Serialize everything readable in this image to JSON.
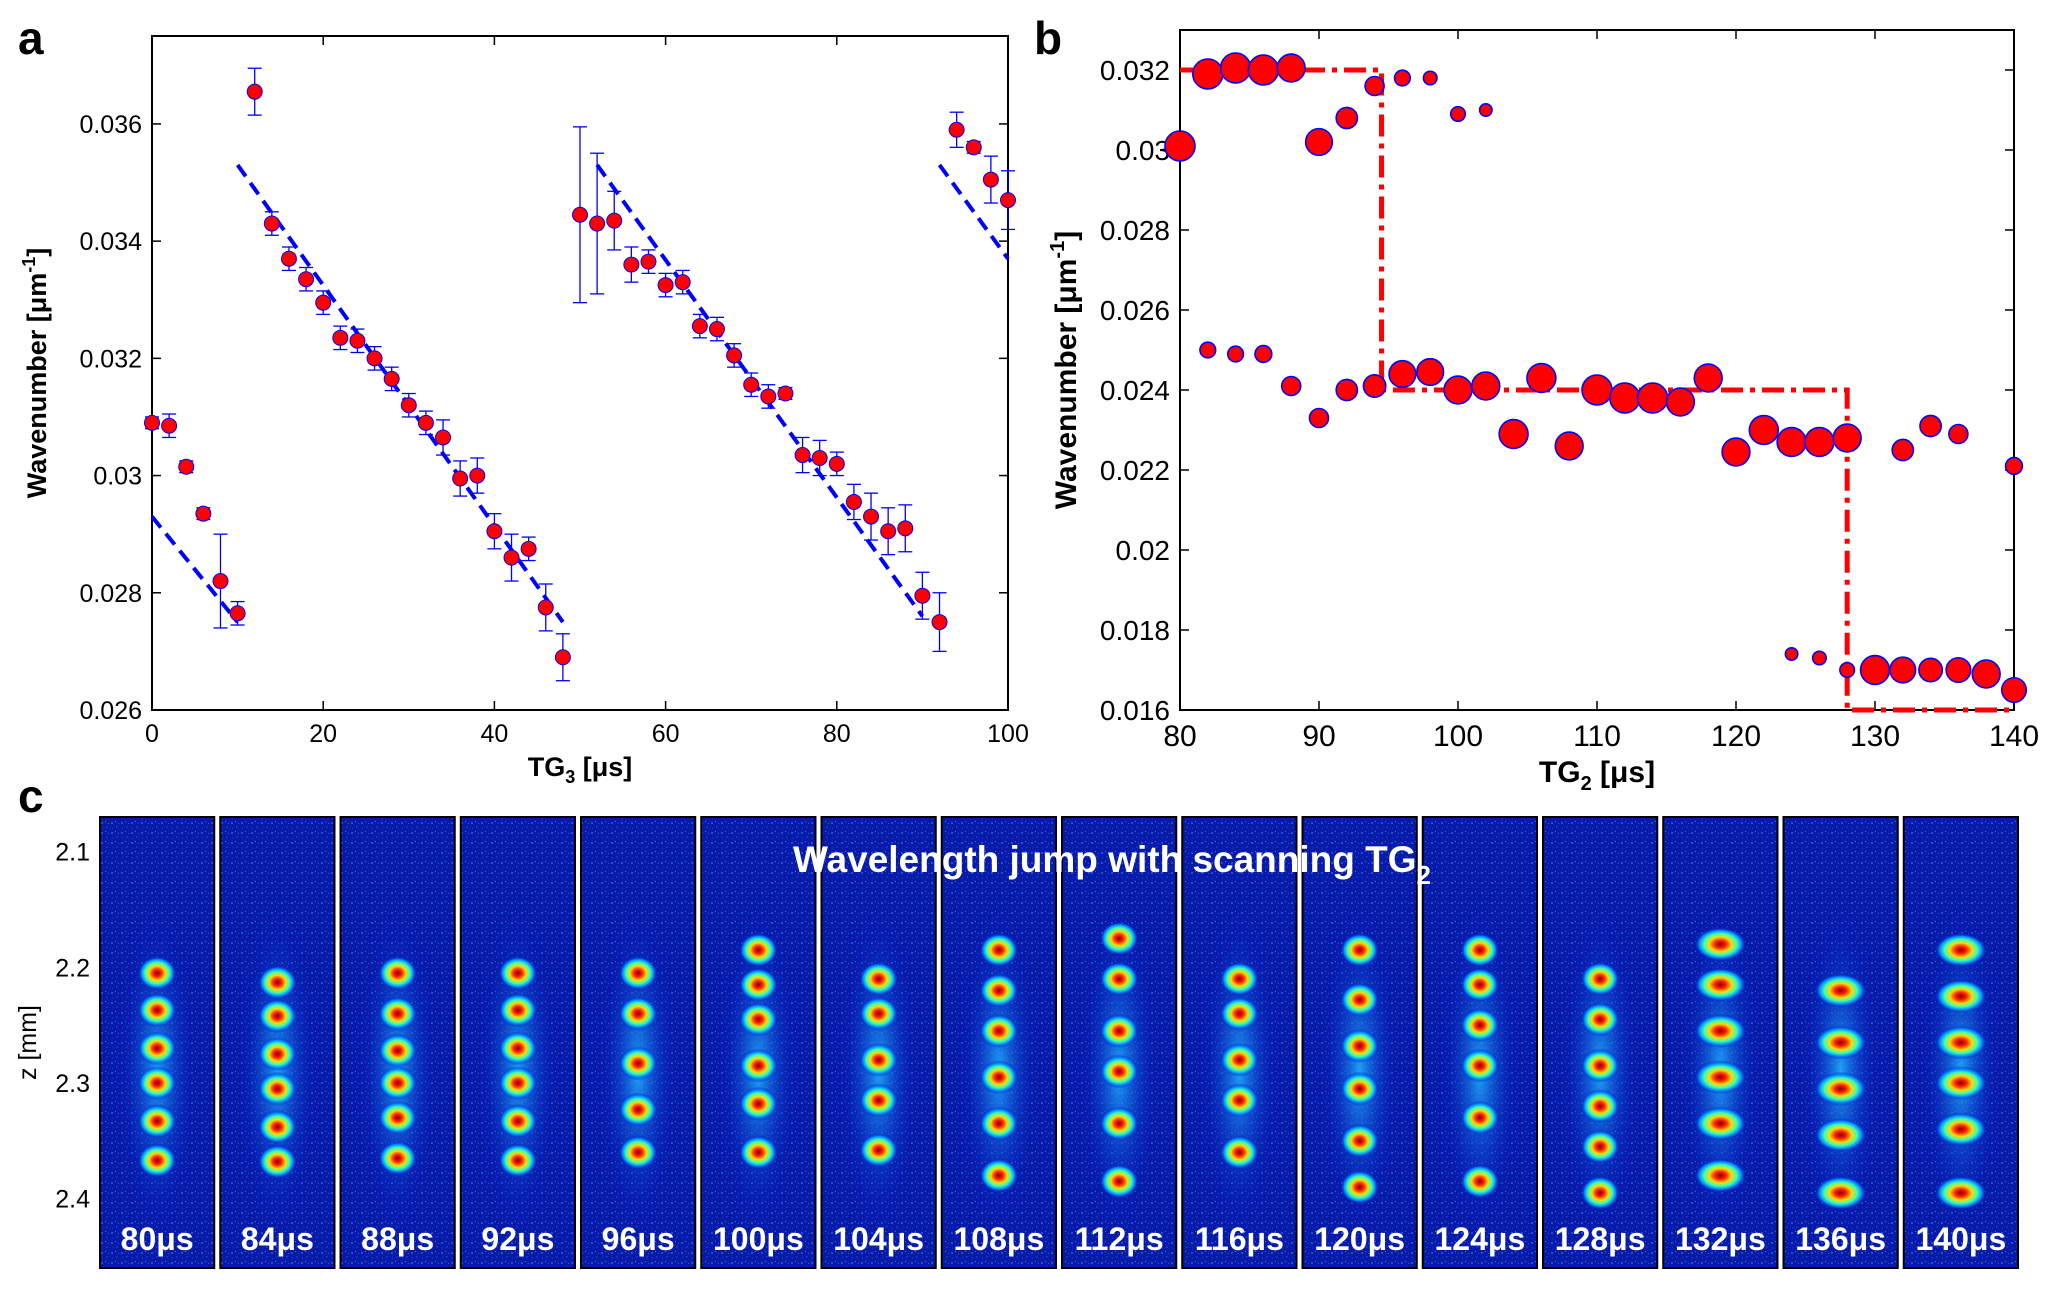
{
  "chart_data": [
    {
      "panel": "a",
      "type": "scatter",
      "xlabel_main": "TG",
      "xlabel_sub": "3",
      "xlabel_unit": " [μs]",
      "ylabel_main": "Wavenumber [μm",
      "ylabel_sup": "-1",
      "ylabel_end": "]",
      "xlim": [
        0,
        100
      ],
      "ylim": [
        0.026,
        0.0375
      ],
      "xticks": [
        0,
        20,
        40,
        60,
        80,
        100
      ],
      "xtick_labels": [
        "0",
        "20",
        "40",
        "60",
        "80",
        "100"
      ],
      "yticks": [
        0.026,
        0.028,
        0.03,
        0.032,
        0.034,
        0.036
      ],
      "ytick_labels": [
        "0.026",
        "0.028",
        "0.03",
        "0.032",
        "0.034",
        "0.036"
      ],
      "marker_color": "#ff0000",
      "marker_edge_color": "#0000ff",
      "errorbar_color": "#0000ff",
      "points": [
        {
          "x": 0,
          "y": 0.0309,
          "err": 0.0001
        },
        {
          "x": 2,
          "y": 0.03085,
          "err": 0.0002
        },
        {
          "x": 4,
          "y": 0.03015,
          "err": 0.0001
        },
        {
          "x": 6,
          "y": 0.02935,
          "err": 0.0001
        },
        {
          "x": 8,
          "y": 0.0282,
          "err": 0.0008
        },
        {
          "x": 10,
          "y": 0.02765,
          "err": 0.0002
        },
        {
          "x": 12,
          "y": 0.03655,
          "err": 0.0004
        },
        {
          "x": 14,
          "y": 0.0343,
          "err": 0.0002
        },
        {
          "x": 16,
          "y": 0.0337,
          "err": 0.0002
        },
        {
          "x": 18,
          "y": 0.03335,
          "err": 0.0002
        },
        {
          "x": 20,
          "y": 0.03295,
          "err": 0.0002
        },
        {
          "x": 22,
          "y": 0.03235,
          "err": 0.0002
        },
        {
          "x": 24,
          "y": 0.0323,
          "err": 0.0002
        },
        {
          "x": 26,
          "y": 0.032,
          "err": 0.0002
        },
        {
          "x": 28,
          "y": 0.03165,
          "err": 0.0002
        },
        {
          "x": 30,
          "y": 0.0312,
          "err": 0.0002
        },
        {
          "x": 32,
          "y": 0.0309,
          "err": 0.0002
        },
        {
          "x": 34,
          "y": 0.03065,
          "err": 0.0003
        },
        {
          "x": 36,
          "y": 0.02995,
          "err": 0.0003
        },
        {
          "x": 38,
          "y": 0.03,
          "err": 0.0003
        },
        {
          "x": 40,
          "y": 0.02905,
          "err": 0.0003
        },
        {
          "x": 42,
          "y": 0.0286,
          "err": 0.0004
        },
        {
          "x": 44,
          "y": 0.02875,
          "err": 0.0002
        },
        {
          "x": 46,
          "y": 0.02775,
          "err": 0.0004
        },
        {
          "x": 48,
          "y": 0.0269,
          "err": 0.0004
        },
        {
          "x": 50,
          "y": 0.03445,
          "err": 0.0015
        },
        {
          "x": 52,
          "y": 0.0343,
          "err": 0.0012
        },
        {
          "x": 54,
          "y": 0.03435,
          "err": 0.0005
        },
        {
          "x": 56,
          "y": 0.0336,
          "err": 0.0003
        },
        {
          "x": 58,
          "y": 0.03365,
          "err": 0.0002
        },
        {
          "x": 60,
          "y": 0.03325,
          "err": 0.0002
        },
        {
          "x": 62,
          "y": 0.0333,
          "err": 0.0002
        },
        {
          "x": 64,
          "y": 0.03255,
          "err": 0.0002
        },
        {
          "x": 66,
          "y": 0.0325,
          "err": 0.0002
        },
        {
          "x": 68,
          "y": 0.03205,
          "err": 0.0002
        },
        {
          "x": 70,
          "y": 0.03155,
          "err": 0.0002
        },
        {
          "x": 72,
          "y": 0.03135,
          "err": 0.0002
        },
        {
          "x": 74,
          "y": 0.0314,
          "err": 0.0001
        },
        {
          "x": 76,
          "y": 0.03035,
          "err": 0.0003
        },
        {
          "x": 78,
          "y": 0.0303,
          "err": 0.0003
        },
        {
          "x": 80,
          "y": 0.0302,
          "err": 0.0002
        },
        {
          "x": 82,
          "y": 0.02955,
          "err": 0.0003
        },
        {
          "x": 84,
          "y": 0.0293,
          "err": 0.0004
        },
        {
          "x": 86,
          "y": 0.02905,
          "err": 0.0004
        },
        {
          "x": 88,
          "y": 0.0291,
          "err": 0.0004
        },
        {
          "x": 90,
          "y": 0.02795,
          "err": 0.0004
        },
        {
          "x": 92,
          "y": 0.0275,
          "err": 0.0005
        },
        {
          "x": 94,
          "y": 0.0359,
          "err": 0.0003
        },
        {
          "x": 96,
          "y": 0.0356,
          "err": 0.0001
        },
        {
          "x": 98,
          "y": 0.03505,
          "err": 0.0004
        },
        {
          "x": 100,
          "y": 0.0347,
          "err": 0.0005
        }
      ],
      "fit_lines": [
        {
          "x": [
            0,
            10
          ],
          "y": [
            0.0293,
            0.0275
          ]
        },
        {
          "x": [
            10,
            48
          ],
          "y": [
            0.0353,
            0.0275
          ]
        },
        {
          "x": [
            52,
            90
          ],
          "y": [
            0.0353,
            0.0276
          ]
        },
        {
          "x": [
            92,
            100
          ],
          "y": [
            0.0353,
            0.0337
          ]
        }
      ],
      "fit_line_color": "#0000ff"
    },
    {
      "panel": "b",
      "type": "scatter",
      "xlabel_main": "TG",
      "xlabel_sub": "2",
      "xlabel_unit": " [μs]",
      "ylabel_main": "Wavenumber [μm",
      "ylabel_sup": "-1",
      "ylabel_end": "]",
      "xlim": [
        80,
        140
      ],
      "ylim": [
        0.016,
        0.033
      ],
      "xticks": [
        80,
        90,
        100,
        110,
        120,
        130,
        140
      ],
      "xtick_labels": [
        "80",
        "90",
        "100",
        "110",
        "120",
        "130",
        "140"
      ],
      "yticks": [
        0.016,
        0.018,
        0.02,
        0.022,
        0.024,
        0.026,
        0.028,
        0.03,
        0.032
      ],
      "ytick_labels": [
        "0.016",
        "0.018",
        "0.02",
        "0.022",
        "0.024",
        "0.026",
        "0.028",
        "0.03",
        "0.032"
      ],
      "marker_color": "#ff0000",
      "marker_edge_color": "#0000ff",
      "points": [
        {
          "x": 80,
          "y": 0.0301,
          "size": 1.0
        },
        {
          "x": 82,
          "y": 0.0319,
          "size": 1.0
        },
        {
          "x": 84,
          "y": 0.03205,
          "size": 1.0
        },
        {
          "x": 86,
          "y": 0.032,
          "size": 1.0
        },
        {
          "x": 88,
          "y": 0.03205,
          "size": 0.9
        },
        {
          "x": 90,
          "y": 0.0302,
          "size": 0.85
        },
        {
          "x": 92,
          "y": 0.0308,
          "size": 0.6
        },
        {
          "x": 94,
          "y": 0.0316,
          "size": 0.5
        },
        {
          "x": 96,
          "y": 0.0318,
          "size": 0.35
        },
        {
          "x": 98,
          "y": 0.0318,
          "size": 0.25
        },
        {
          "x": 100,
          "y": 0.0309,
          "size": 0.3
        },
        {
          "x": 102,
          "y": 0.031,
          "size": 0.2
        },
        {
          "x": 82,
          "y": 0.025,
          "size": 0.35
        },
        {
          "x": 84,
          "y": 0.0249,
          "size": 0.35
        },
        {
          "x": 86,
          "y": 0.0249,
          "size": 0.4
        },
        {
          "x": 88,
          "y": 0.0241,
          "size": 0.5
        },
        {
          "x": 90,
          "y": 0.0233,
          "size": 0.5
        },
        {
          "x": 92,
          "y": 0.024,
          "size": 0.6
        },
        {
          "x": 94,
          "y": 0.0241,
          "size": 0.65
        },
        {
          "x": 96,
          "y": 0.0244,
          "size": 0.85
        },
        {
          "x": 98,
          "y": 0.02445,
          "size": 0.85
        },
        {
          "x": 100,
          "y": 0.024,
          "size": 0.9
        },
        {
          "x": 102,
          "y": 0.0241,
          "size": 0.9
        },
        {
          "x": 104,
          "y": 0.0229,
          "size": 0.95
        },
        {
          "x": 106,
          "y": 0.0243,
          "size": 0.95
        },
        {
          "x": 108,
          "y": 0.0226,
          "size": 0.9
        },
        {
          "x": 110,
          "y": 0.024,
          "size": 1.0
        },
        {
          "x": 112,
          "y": 0.0238,
          "size": 1.0
        },
        {
          "x": 114,
          "y": 0.0238,
          "size": 1.0
        },
        {
          "x": 116,
          "y": 0.0237,
          "size": 0.9
        },
        {
          "x": 118,
          "y": 0.0243,
          "size": 0.9
        },
        {
          "x": 120,
          "y": 0.02245,
          "size": 0.9
        },
        {
          "x": 122,
          "y": 0.023,
          "size": 0.95
        },
        {
          "x": 124,
          "y": 0.0227,
          "size": 0.95
        },
        {
          "x": 126,
          "y": 0.0227,
          "size": 0.95
        },
        {
          "x": 128,
          "y": 0.0228,
          "size": 0.9
        },
        {
          "x": 124,
          "y": 0.0174,
          "size": 0.2
        },
        {
          "x": 126,
          "y": 0.0173,
          "size": 0.25
        },
        {
          "x": 128,
          "y": 0.017,
          "size": 0.3
        },
        {
          "x": 130,
          "y": 0.017,
          "size": 0.95
        },
        {
          "x": 132,
          "y": 0.017,
          "size": 0.8
        },
        {
          "x": 134,
          "y": 0.017,
          "size": 0.7
        },
        {
          "x": 136,
          "y": 0.017,
          "size": 0.75
        },
        {
          "x": 138,
          "y": 0.0169,
          "size": 0.9
        },
        {
          "x": 140,
          "y": 0.0165,
          "size": 0.75
        },
        {
          "x": 132,
          "y": 0.0225,
          "size": 0.6
        },
        {
          "x": 134,
          "y": 0.0231,
          "size": 0.6
        },
        {
          "x": 136,
          "y": 0.0229,
          "size": 0.5
        },
        {
          "x": 140,
          "y": 0.0221,
          "size": 0.4
        }
      ],
      "step_line": {
        "x": [
          80,
          94.5,
          94.5,
          128,
          128,
          140
        ],
        "y": [
          0.032,
          0.032,
          0.024,
          0.024,
          0.016,
          0.016
        ]
      },
      "step_line_color": "#ff0000"
    }
  ],
  "panel_labels": {
    "a": "a",
    "b": "b",
    "c": "c"
  },
  "panel_c": {
    "title_main": "Wavelength jump with scanning TG",
    "title_sub": "2",
    "ylabel": "z [mm]",
    "zticks": [
      "2.1",
      "2.2",
      "2.3",
      "2.4"
    ],
    "zlim": [
      2.07,
      2.46
    ],
    "frames": [
      {
        "label": "80μs",
        "fringes": [
          2.205,
          2.237,
          2.27,
          2.3,
          2.333,
          2.367
        ],
        "broad": false
      },
      {
        "label": "84μs",
        "fringes": [
          2.213,
          2.242,
          2.275,
          2.305,
          2.338,
          2.368
        ],
        "broad": false
      },
      {
        "label": "88μs",
        "fringes": [
          2.205,
          2.24,
          2.272,
          2.3,
          2.33,
          2.365
        ],
        "broad": false
      },
      {
        "label": "92μs",
        "fringes": [
          2.205,
          2.237,
          2.27,
          2.3,
          2.333,
          2.367
        ],
        "broad": false
      },
      {
        "label": "96μs",
        "fringes": [
          2.205,
          2.24,
          2.283,
          2.323,
          2.36
        ],
        "broad": false
      },
      {
        "label": "100μs",
        "fringes": [
          2.185,
          2.215,
          2.245,
          2.285,
          2.318,
          2.36
        ],
        "broad": false
      },
      {
        "label": "104μs",
        "fringes": [
          2.21,
          2.24,
          2.28,
          2.315,
          2.358
        ],
        "broad": false
      },
      {
        "label": "108μs",
        "fringes": [
          2.185,
          2.22,
          2.255,
          2.295,
          2.335,
          2.38
        ],
        "broad": false
      },
      {
        "label": "112μs",
        "fringes": [
          2.175,
          2.21,
          2.255,
          2.29,
          2.335,
          2.385
        ],
        "broad": false
      },
      {
        "label": "116μs",
        "fringes": [
          2.21,
          2.24,
          2.28,
          2.315,
          2.36
        ],
        "broad": false
      },
      {
        "label": "120μs",
        "fringes": [
          2.185,
          2.228,
          2.268,
          2.305,
          2.35,
          2.39
        ],
        "broad": false
      },
      {
        "label": "124μs",
        "fringes": [
          2.185,
          2.215,
          2.25,
          2.285,
          2.33,
          2.385
        ],
        "broad": false
      },
      {
        "label": "128μs",
        "fringes": [
          2.21,
          2.245,
          2.285,
          2.32,
          2.355,
          2.395
        ],
        "broad": false
      },
      {
        "label": "132μs",
        "fringes": [
          2.18,
          2.215,
          2.255,
          2.295,
          2.335,
          2.38
        ],
        "broad": true
      },
      {
        "label": "136μs",
        "fringes": [
          2.22,
          2.265,
          2.305,
          2.345,
          2.395
        ],
        "broad": true
      },
      {
        "label": "140μs",
        "fringes": [
          2.185,
          2.225,
          2.265,
          2.3,
          2.34,
          2.395
        ],
        "broad": true
      }
    ]
  }
}
